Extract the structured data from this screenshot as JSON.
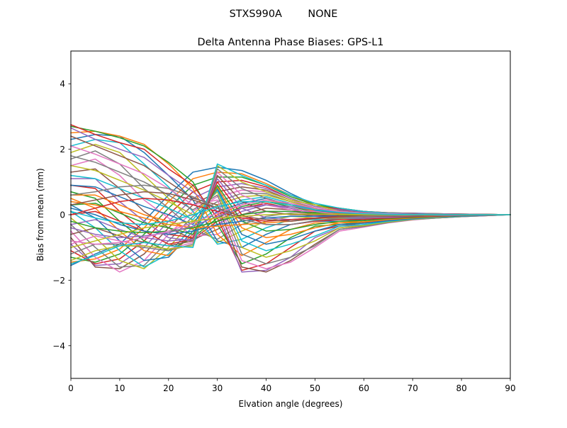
{
  "figure": {
    "suptitle": "STXS990A        NONE"
  },
  "chart_data": {
    "type": "line",
    "title": "Delta Antenna Phase Biases: GPS-L1",
    "xlabel": "Elvation angle (degrees)",
    "ylabel": "Bias from mean (mm)",
    "xlim": [
      0,
      90
    ],
    "ylim": [
      -5,
      5
    ],
    "xticks": [
      0,
      10,
      20,
      30,
      40,
      50,
      60,
      70,
      80,
      90
    ],
    "yticks": [
      -4,
      -2,
      0,
      2,
      4
    ],
    "ytick_labels": [
      "−4",
      "−2",
      "0",
      "2",
      "4"
    ],
    "grid": false,
    "legend": "none",
    "x": [
      0,
      5,
      10,
      15,
      20,
      25,
      30,
      35,
      40,
      45,
      50,
      55,
      60,
      65,
      70,
      75,
      80,
      85,
      90
    ],
    "colors": [
      "#1f77b4",
      "#ff7f0e",
      "#2ca02c",
      "#d62728",
      "#9467bd",
      "#8c564b",
      "#e377c2",
      "#7f7f7f",
      "#bcbd22",
      "#17becf"
    ],
    "series": [
      {
        "values": [
          -1.55,
          -1.2,
          -0.9,
          -0.2,
          0.6,
          1.3,
          1.45,
          1.35,
          1.05,
          0.65,
          0.3,
          0.15,
          0.1,
          0.05,
          0.05,
          0.03,
          0.02,
          0.01,
          0.0
        ]
      },
      {
        "values": [
          -1.45,
          -1.35,
          -1.05,
          -0.4,
          0.4,
          1.1,
          1.3,
          1.25,
          0.95,
          0.6,
          0.3,
          0.2,
          0.1,
          0.05,
          0.04,
          0.03,
          0.02,
          0.01,
          0.0
        ]
      },
      {
        "values": [
          -1.3,
          -1.45,
          -1.2,
          -0.6,
          0.2,
          0.9,
          1.15,
          1.15,
          0.9,
          0.55,
          0.3,
          0.2,
          0.1,
          0.06,
          0.04,
          0.03,
          0.02,
          0.01,
          0.0
        ]
      },
      {
        "values": [
          -1.1,
          -1.5,
          -1.35,
          -0.8,
          0.0,
          0.7,
          1.0,
          1.05,
          0.85,
          0.5,
          0.25,
          0.18,
          0.1,
          0.06,
          0.04,
          0.03,
          0.02,
          0.01,
          0.0
        ]
      },
      {
        "values": [
          -0.9,
          -1.55,
          -1.5,
          -1.0,
          -0.2,
          0.5,
          0.85,
          0.95,
          0.8,
          0.5,
          0.25,
          0.15,
          0.08,
          0.05,
          0.04,
          0.03,
          0.02,
          0.01,
          0.0
        ]
      },
      {
        "values": [
          -0.7,
          -1.6,
          -1.65,
          -1.2,
          -0.4,
          0.3,
          0.7,
          0.85,
          0.75,
          0.45,
          0.2,
          0.12,
          0.06,
          0.04,
          0.03,
          0.02,
          0.01,
          0.01,
          0.0
        ]
      },
      {
        "values": [
          -0.5,
          -1.3,
          -1.75,
          -1.4,
          -0.6,
          0.1,
          0.55,
          0.75,
          0.7,
          0.45,
          0.2,
          0.1,
          0.05,
          0.03,
          0.02,
          0.02,
          0.01,
          0.0,
          0.0
        ]
      },
      {
        "values": [
          -0.3,
          -1.0,
          -1.6,
          -1.55,
          -0.8,
          -0.05,
          0.4,
          0.65,
          0.65,
          0.4,
          0.2,
          0.1,
          0.04,
          0.02,
          0.02,
          0.01,
          0.01,
          0.0,
          0.0
        ]
      },
      {
        "values": [
          -0.1,
          -0.7,
          -1.4,
          -1.65,
          -1.0,
          -0.2,
          0.3,
          0.55,
          0.6,
          0.4,
          0.18,
          0.08,
          0.03,
          0.02,
          0.01,
          0.01,
          0.0,
          0.0,
          0.0
        ]
      },
      {
        "values": [
          0.1,
          -0.4,
          -1.1,
          -1.6,
          -1.2,
          -0.35,
          0.2,
          0.45,
          0.55,
          0.35,
          0.15,
          0.05,
          0.02,
          0.01,
          0.01,
          0.0,
          0.0,
          0.0,
          0.0
        ]
      },
      {
        "values": [
          0.3,
          -0.1,
          -0.8,
          -1.4,
          -1.3,
          -0.5,
          0.1,
          0.35,
          0.5,
          0.3,
          0.12,
          0.03,
          0.01,
          0.0,
          0.0,
          0.0,
          0.0,
          0.0,
          0.0
        ]
      },
      {
        "values": [
          0.5,
          0.2,
          -0.5,
          -1.1,
          -1.25,
          -0.6,
          0.0,
          0.3,
          0.45,
          0.3,
          0.1,
          0.02,
          0.0,
          0.0,
          0.0,
          0.0,
          0.0,
          0.0,
          0.0
        ]
      },
      {
        "values": [
          0.7,
          0.5,
          -0.2,
          -0.8,
          -1.1,
          -0.7,
          -0.1,
          0.25,
          0.4,
          0.25,
          0.08,
          0.0,
          -0.01,
          0.0,
          0.0,
          0.0,
          0.0,
          0.0,
          0.0
        ]
      },
      {
        "values": [
          0.9,
          0.8,
          0.1,
          -0.5,
          -0.9,
          -0.75,
          -0.2,
          0.2,
          0.35,
          0.2,
          0.05,
          -0.02,
          -0.02,
          -0.01,
          0.0,
          0.0,
          0.0,
          0.0,
          0.0
        ]
      },
      {
        "values": [
          1.1,
          1.1,
          0.4,
          -0.2,
          -0.7,
          -0.8,
          -0.3,
          0.1,
          0.3,
          0.2,
          0.03,
          -0.04,
          -0.03,
          -0.02,
          -0.01,
          0.0,
          0.0,
          0.0,
          0.0
        ]
      },
      {
        "values": [
          1.3,
          1.4,
          0.8,
          0.1,
          -0.4,
          -0.75,
          -0.45,
          0.0,
          0.2,
          0.15,
          0.0,
          -0.06,
          -0.05,
          -0.03,
          -0.02,
          -0.01,
          0.0,
          0.0,
          0.0
        ]
      },
      {
        "values": [
          1.5,
          1.7,
          1.2,
          0.45,
          -0.1,
          -0.65,
          -0.6,
          -0.15,
          0.1,
          0.1,
          -0.02,
          -0.08,
          -0.07,
          -0.04,
          -0.02,
          -0.01,
          0.0,
          0.0,
          0.0
        ]
      },
      {
        "values": [
          1.7,
          1.95,
          1.55,
          0.8,
          0.2,
          -0.45,
          -0.75,
          -0.3,
          -0.05,
          0.05,
          -0.05,
          -0.1,
          -0.08,
          -0.05,
          -0.03,
          -0.02,
          -0.01,
          0.0,
          0.0
        ]
      },
      {
        "values": [
          1.9,
          2.15,
          1.9,
          1.2,
          0.5,
          -0.2,
          -0.85,
          -0.5,
          -0.2,
          -0.05,
          -0.1,
          -0.12,
          -0.1,
          -0.06,
          -0.04,
          -0.02,
          -0.01,
          0.0,
          0.0
        ]
      },
      {
        "values": [
          2.1,
          2.3,
          2.2,
          1.55,
          0.85,
          0.1,
          -0.9,
          -0.75,
          -0.4,
          -0.15,
          -0.15,
          -0.15,
          -0.12,
          -0.08,
          -0.05,
          -0.03,
          -0.02,
          -0.01,
          0.0
        ]
      },
      {
        "values": [
          2.3,
          2.45,
          2.4,
          1.9,
          1.2,
          0.45,
          -0.8,
          -1.0,
          -0.6,
          -0.3,
          -0.2,
          -0.2,
          -0.15,
          -0.1,
          -0.06,
          -0.04,
          -0.02,
          -0.01,
          0.0
        ]
      },
      {
        "values": [
          2.5,
          2.55,
          2.4,
          2.15,
          1.55,
          0.8,
          -0.6,
          -1.25,
          -0.85,
          -0.45,
          -0.25,
          -0.25,
          -0.18,
          -0.12,
          -0.08,
          -0.05,
          -0.03,
          -0.01,
          0.0
        ]
      },
      {
        "values": [
          2.7,
          2.55,
          2.35,
          2.1,
          1.6,
          1.0,
          -0.3,
          -1.5,
          -1.2,
          -0.7,
          -0.35,
          -0.3,
          -0.22,
          -0.15,
          -0.1,
          -0.06,
          -0.04,
          -0.02,
          0.0
        ]
      },
      {
        "values": [
          2.75,
          2.45,
          2.2,
          2.0,
          1.4,
          0.9,
          -0.1,
          -1.7,
          -1.5,
          -1.0,
          -0.5,
          -0.35,
          -0.25,
          -0.18,
          -0.12,
          -0.08,
          -0.05,
          -0.02,
          0.0
        ]
      },
      {
        "values": [
          2.65,
          2.3,
          2.0,
          1.75,
          1.2,
          0.7,
          0.1,
          -1.75,
          -1.7,
          -1.3,
          -0.7,
          -0.4,
          -0.3,
          -0.2,
          -0.14,
          -0.09,
          -0.05,
          -0.02,
          0.0
        ]
      },
      {
        "values": [
          2.4,
          2.1,
          1.8,
          1.5,
          1.0,
          0.5,
          0.3,
          -1.6,
          -1.75,
          -1.4,
          -0.9,
          -0.45,
          -0.35,
          -0.22,
          -0.15,
          -0.1,
          -0.06,
          -0.03,
          0.0
        ]
      },
      {
        "values": [
          2.1,
          1.85,
          1.55,
          1.25,
          0.8,
          0.3,
          0.45,
          -1.4,
          -1.65,
          -1.45,
          -1.0,
          -0.5,
          -0.38,
          -0.25,
          -0.16,
          -0.1,
          -0.06,
          -0.03,
          0.0
        ]
      },
      {
        "values": [
          1.8,
          1.6,
          1.3,
          1.0,
          0.6,
          0.15,
          0.6,
          -1.2,
          -1.5,
          -1.3,
          -0.95,
          -0.45,
          -0.36,
          -0.24,
          -0.15,
          -0.1,
          -0.06,
          -0.03,
          0.0
        ]
      },
      {
        "values": [
          1.5,
          1.35,
          1.05,
          0.75,
          0.4,
          0.0,
          0.7,
          -1.0,
          -1.3,
          -1.1,
          -0.8,
          -0.4,
          -0.33,
          -0.22,
          -0.14,
          -0.09,
          -0.05,
          -0.02,
          0.0
        ]
      },
      {
        "values": [
          1.2,
          1.1,
          0.8,
          0.5,
          0.2,
          -0.15,
          0.75,
          -0.8,
          -1.1,
          -0.9,
          -0.65,
          -0.35,
          -0.3,
          -0.2,
          -0.13,
          -0.08,
          -0.05,
          -0.02,
          0.0
        ]
      },
      {
        "values": [
          0.9,
          0.85,
          0.55,
          0.25,
          0.0,
          -0.3,
          0.8,
          -0.6,
          -0.9,
          -0.75,
          -0.5,
          -0.3,
          -0.26,
          -0.18,
          -0.12,
          -0.07,
          -0.04,
          -0.02,
          0.0
        ]
      },
      {
        "values": [
          0.6,
          0.6,
          0.3,
          0.0,
          -0.2,
          -0.45,
          0.85,
          -0.4,
          -0.7,
          -0.6,
          -0.4,
          -0.25,
          -0.22,
          -0.15,
          -0.1,
          -0.06,
          -0.03,
          -0.01,
          0.0
        ]
      },
      {
        "values": [
          0.3,
          0.35,
          0.05,
          -0.25,
          -0.4,
          -0.6,
          0.9,
          -0.2,
          -0.5,
          -0.45,
          -0.3,
          -0.2,
          -0.18,
          -0.12,
          -0.08,
          -0.05,
          -0.03,
          -0.01,
          0.0
        ]
      },
      {
        "values": [
          0.0,
          0.1,
          -0.2,
          -0.5,
          -0.6,
          -0.7,
          1.0,
          0.0,
          -0.3,
          -0.3,
          -0.2,
          -0.15,
          -0.14,
          -0.1,
          -0.06,
          -0.04,
          -0.02,
          -0.01,
          0.0
        ]
      },
      {
        "values": [
          -0.3,
          -0.15,
          -0.45,
          -0.7,
          -0.8,
          -0.75,
          1.1,
          0.2,
          -0.1,
          -0.15,
          -0.1,
          -0.1,
          -0.1,
          -0.08,
          -0.05,
          -0.03,
          -0.02,
          -0.01,
          0.0
        ]
      },
      {
        "values": [
          -0.6,
          -0.4,
          -0.65,
          -0.85,
          -0.95,
          -0.8,
          1.2,
          0.4,
          0.1,
          0.0,
          0.0,
          -0.05,
          -0.06,
          -0.05,
          -0.04,
          -0.02,
          -0.01,
          0.0,
          0.0
        ]
      },
      {
        "values": [
          -0.9,
          -0.65,
          -0.8,
          -0.95,
          -1.05,
          -0.85,
          1.3,
          0.6,
          0.3,
          0.15,
          0.1,
          0.0,
          -0.02,
          -0.03,
          -0.02,
          -0.01,
          -0.01,
          0.0,
          0.0
        ]
      },
      {
        "values": [
          -1.2,
          -0.9,
          -0.9,
          -1.0,
          -1.1,
          -0.9,
          1.4,
          0.8,
          0.5,
          0.3,
          0.2,
          0.05,
          0.02,
          0.0,
          -0.01,
          -0.01,
          0.0,
          0.0,
          0.0
        ]
      },
      {
        "values": [
          -1.4,
          -1.1,
          -0.95,
          -0.95,
          -1.05,
          -0.95,
          1.5,
          1.0,
          0.7,
          0.45,
          0.3,
          0.1,
          0.05,
          0.02,
          0.0,
          0.0,
          0.0,
          0.0,
          0.0
        ]
      },
      {
        "values": [
          -1.5,
          -1.25,
          -0.95,
          -0.85,
          -0.95,
          -1.0,
          1.55,
          1.2,
          0.9,
          0.6,
          0.35,
          0.2,
          0.1,
          0.05,
          0.02,
          0.01,
          0.0,
          0.0,
          0.0
        ]
      },
      {
        "values": [
          0.2,
          0.0,
          -0.3,
          -0.5,
          -0.6,
          -0.5,
          -0.3,
          -0.2,
          -0.1,
          -0.05,
          -0.05,
          -0.04,
          -0.03,
          -0.02,
          -0.01,
          -0.01,
          0.0,
          0.0,
          0.0
        ]
      },
      {
        "values": [
          0.4,
          0.3,
          0.1,
          -0.1,
          -0.3,
          -0.4,
          -0.35,
          -0.3,
          -0.25,
          -0.2,
          -0.12,
          -0.08,
          -0.05,
          -0.03,
          -0.02,
          -0.01,
          0.0,
          0.0,
          0.0
        ]
      },
      {
        "values": [
          -0.2,
          -0.4,
          -0.5,
          -0.55,
          -0.5,
          -0.4,
          -0.2,
          0.0,
          0.1,
          0.1,
          0.05,
          0.0,
          -0.02,
          -0.02,
          -0.01,
          0.0,
          0.0,
          0.0,
          0.0
        ]
      },
      {
        "values": [
          0.0,
          0.2,
          0.4,
          0.5,
          0.45,
          0.3,
          0.1,
          -0.1,
          -0.2,
          -0.15,
          -0.1,
          -0.05,
          -0.03,
          -0.02,
          -0.01,
          0.0,
          0.0,
          0.0,
          0.0
        ]
      },
      {
        "values": [
          -0.4,
          -0.6,
          -0.7,
          -0.65,
          -0.55,
          -0.35,
          -0.05,
          0.2,
          0.3,
          0.25,
          0.15,
          0.08,
          0.04,
          0.02,
          0.01,
          0.0,
          0.0,
          0.0,
          0.0
        ]
      },
      {
        "values": [
          0.3,
          0.45,
          0.6,
          0.7,
          0.65,
          0.45,
          0.2,
          -0.05,
          -0.15,
          -0.2,
          -0.12,
          -0.06,
          -0.03,
          -0.02,
          -0.01,
          0.0,
          0.0,
          0.0,
          0.0
        ]
      },
      {
        "values": [
          -0.8,
          -0.9,
          -0.85,
          -0.7,
          -0.5,
          -0.25,
          0.05,
          0.3,
          0.45,
          0.35,
          0.2,
          0.1,
          0.05,
          0.03,
          0.01,
          0.0,
          0.0,
          0.0,
          0.0
        ]
      },
      {
        "values": [
          0.6,
          0.7,
          0.85,
          0.9,
          0.8,
          0.55,
          0.2,
          -0.15,
          -0.3,
          -0.3,
          -0.18,
          -0.1,
          -0.05,
          -0.03,
          -0.01,
          0.0,
          0.0,
          0.0,
          0.0
        ]
      },
      {
        "values": [
          -1.0,
          -0.8,
          -0.6,
          -0.4,
          -0.3,
          -0.2,
          -0.1,
          -0.05,
          0.0,
          0.02,
          0.02,
          0.01,
          0.0,
          0.0,
          0.0,
          0.0,
          0.0,
          0.0,
          0.0
        ]
      },
      {
        "values": [
          0.1,
          -0.1,
          -0.25,
          -0.3,
          -0.2,
          0.0,
          0.25,
          0.4,
          0.4,
          0.3,
          0.15,
          0.07,
          0.03,
          0.01,
          0.0,
          0.0,
          0.0,
          0.0,
          0.0
        ]
      }
    ]
  }
}
